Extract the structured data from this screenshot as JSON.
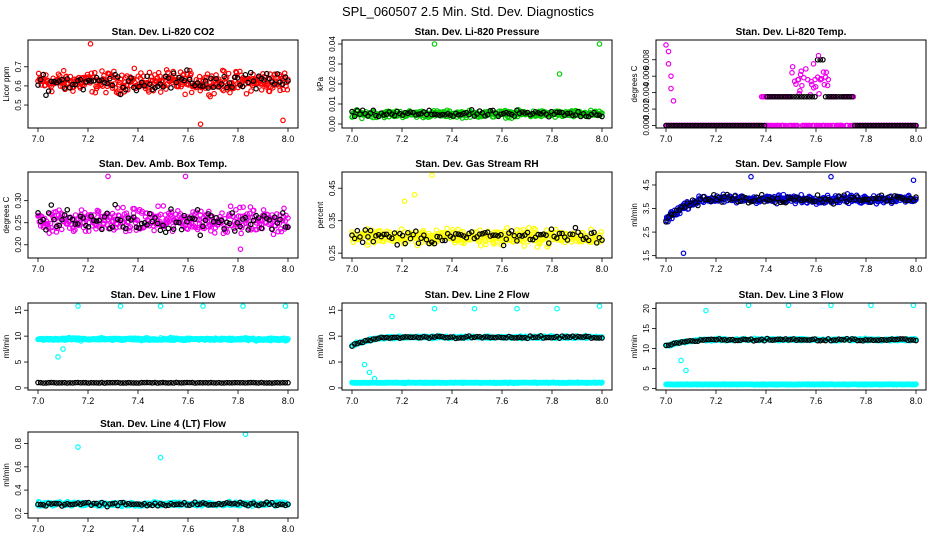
{
  "figure_title": "SPL_060507  2.5 Min. Std. Dev. Diagnostics",
  "chart_data": [
    {
      "id": "co2",
      "type": "scatter",
      "title": "Stan. Dev. Li-820 CO2",
      "ylabel": "Licor ppm",
      "xlabel": "",
      "xlim": [
        6.96,
        8.04
      ],
      "ylim": [
        0.38,
        0.84
      ],
      "xticks": [
        "7.0",
        "7.2",
        "7.4",
        "7.6",
        "7.8",
        "8.0"
      ],
      "yticks": [
        "0.5",
        "0.6",
        "0.7"
      ],
      "color": "#ff0000",
      "pattern": "noise",
      "base": 0.62,
      "spread": 0.08,
      "ramp": 0,
      "outliers": [
        {
          "x": 7.21,
          "y": 0.82
        },
        {
          "x": 7.65,
          "y": 0.4
        },
        {
          "x": 7.98,
          "y": 0.42
        }
      ]
    },
    {
      "id": "pressure",
      "type": "scatter",
      "title": "Stan. Dev. Li-820 Pressure",
      "ylabel": "kPa",
      "xlabel": "",
      "xlim": [
        6.96,
        8.04
      ],
      "ylim": [
        -0.002,
        0.042
      ],
      "xticks": [
        "7.0",
        "7.2",
        "7.4",
        "7.6",
        "7.8",
        "8.0"
      ],
      "yticks": [
        "0.00",
        "0.01",
        "0.02",
        "0.03",
        "0.04"
      ],
      "color": "#00cc00",
      "pattern": "noise",
      "base": 0.005,
      "spread": 0.0025,
      "ramp": 0,
      "outliers": [
        {
          "x": 7.33,
          "y": 0.04
        },
        {
          "x": 7.83,
          "y": 0.025
        },
        {
          "x": 7.99,
          "y": 0.04
        }
      ]
    },
    {
      "id": "temp",
      "type": "scatter",
      "title": "Stan. Dev. Li-820 Temp.",
      "ylabel": "degrees C",
      "xlabel": "",
      "xlim": [
        6.96,
        8.04
      ],
      "ylim": [
        -0.0003,
        0.0104
      ],
      "xticks": [
        "7.0",
        "7.2",
        "7.4",
        "7.6",
        "7.8",
        "8.0"
      ],
      "yticks": [
        "0.000",
        "0.002",
        "0.004",
        "0.006",
        "0.008"
      ],
      "color": "#ee00ee",
      "pattern": "temp",
      "base": 0,
      "spread": 0,
      "ramp": 0,
      "outliers": [
        {
          "x": 7.0,
          "y": 0.0098
        },
        {
          "x": 7.01,
          "y": 0.009
        },
        {
          "x": 7.01,
          "y": 0.0075
        },
        {
          "x": 7.02,
          "y": 0.006
        },
        {
          "x": 7.02,
          "y": 0.0045
        },
        {
          "x": 7.03,
          "y": 0.003
        },
        {
          "x": 7.59,
          "y": 0.0075
        },
        {
          "x": 7.61,
          "y": 0.0085
        },
        {
          "x": 7.63,
          "y": 0.0065
        }
      ]
    },
    {
      "id": "boxtemp",
      "type": "scatter",
      "title": "Stan. Dev. Amb. Box Temp.",
      "ylabel": "degrees C",
      "xlabel": "",
      "xlim": [
        6.96,
        8.04
      ],
      "ylim": [
        0.17,
        0.365
      ],
      "xticks": [
        "7.0",
        "7.2",
        "7.4",
        "7.6",
        "7.8",
        "8.0"
      ],
      "yticks": [
        "0.20",
        "0.25",
        "0.30"
      ],
      "color": "#ee00ee",
      "pattern": "noise",
      "base": 0.255,
      "spread": 0.04,
      "ramp": 0,
      "outliers": [
        {
          "x": 7.28,
          "y": 0.355
        },
        {
          "x": 7.59,
          "y": 0.355
        },
        {
          "x": 7.81,
          "y": 0.19
        }
      ]
    },
    {
      "id": "rh",
      "type": "scatter",
      "title": "Stan. Dev. Gas Stream RH",
      "ylabel": "percent",
      "xlabel": "",
      "xlim": [
        6.96,
        8.04
      ],
      "ylim": [
        0.235,
        0.5
      ],
      "xticks": [
        "7.0",
        "7.2",
        "7.4",
        "7.6",
        "7.8",
        "8.0"
      ],
      "yticks": [
        "0.25",
        "0.35",
        "0.45"
      ],
      "color": "#ffff00",
      "pattern": "noise",
      "base": 0.3,
      "spread": 0.035,
      "ramp": 0,
      "outliers": [
        {
          "x": 7.32,
          "y": 0.49
        },
        {
          "x": 7.25,
          "y": 0.43
        },
        {
          "x": 7.21,
          "y": 0.41
        }
      ]
    },
    {
      "id": "sample",
      "type": "scatter",
      "title": "Stan. Dev. Sample Flow",
      "ylabel": "ml/min",
      "xlabel": "",
      "xlim": [
        6.96,
        8.04
      ],
      "ylim": [
        1.4,
        5.05
      ],
      "xticks": [
        "7.0",
        "7.2",
        "7.4",
        "7.6",
        "7.8",
        "8.0"
      ],
      "yticks": [
        "1.5",
        "2.5",
        "3.5",
        "4.5"
      ],
      "color": "#0000dd",
      "pattern": "ramp",
      "base": 3.9,
      "spread": 0.25,
      "ramp": 0.9,
      "outliers": [
        {
          "x": 7.07,
          "y": 1.6
        },
        {
          "x": 7.34,
          "y": 4.85
        },
        {
          "x": 7.66,
          "y": 4.85
        },
        {
          "x": 7.99,
          "y": 4.7
        }
      ]
    },
    {
      "id": "line1",
      "type": "scatter",
      "title": "Stan. Dev. Line 1 Flow",
      "ylabel": "ml/min",
      "xlabel": "",
      "xlim": [
        6.96,
        8.04
      ],
      "ylim": [
        -0.4,
        16.4
      ],
      "xticks": [
        "7.0",
        "7.2",
        "7.4",
        "7.6",
        "7.8",
        "8.0"
      ],
      "yticks": [
        "0",
        "5",
        "10",
        "15"
      ],
      "color": "#00ffff",
      "pattern": "band",
      "base": 9.4,
      "spread": 0.35,
      "ramp": 0,
      "blackBase": 1.0,
      "outliers": [
        {
          "x": 7.16,
          "y": 15.8
        },
        {
          "x": 7.33,
          "y": 15.8
        },
        {
          "x": 7.49,
          "y": 15.8
        },
        {
          "x": 7.66,
          "y": 15.8
        },
        {
          "x": 7.82,
          "y": 15.8
        },
        {
          "x": 7.99,
          "y": 15.8
        },
        {
          "x": 7.08,
          "y": 6.0
        },
        {
          "x": 7.1,
          "y": 7.5
        }
      ]
    },
    {
      "id": "line2",
      "type": "scatter",
      "title": "Stan. Dev. Line 2 Flow",
      "ylabel": "ml/min",
      "xlabel": "",
      "xlim": [
        6.96,
        8.04
      ],
      "ylim": [
        -0.4,
        16.4
      ],
      "xticks": [
        "7.0",
        "7.2",
        "7.4",
        "7.6",
        "7.8",
        "8.0"
      ],
      "yticks": [
        "0",
        "5",
        "10",
        "15"
      ],
      "color": "#00ffff",
      "pattern": "band2",
      "base": 9.8,
      "spread": 0.35,
      "ramp": 1.6,
      "blackBase": 1.0,
      "outliers": [
        {
          "x": 7.16,
          "y": 13.8
        },
        {
          "x": 7.33,
          "y": 15.3
        },
        {
          "x": 7.49,
          "y": 15.3
        },
        {
          "x": 7.66,
          "y": 15.3
        },
        {
          "x": 7.82,
          "y": 15.3
        },
        {
          "x": 7.99,
          "y": 15.8
        },
        {
          "x": 7.05,
          "y": 4.5
        },
        {
          "x": 7.07,
          "y": 3.0
        },
        {
          "x": 7.09,
          "y": 1.8
        }
      ]
    },
    {
      "id": "line3",
      "type": "scatter",
      "title": "Stan. Dev. Line 3 Flow",
      "ylabel": "ml/min",
      "xlabel": "",
      "xlim": [
        6.96,
        8.04
      ],
      "ylim": [
        -0.4,
        21.4
      ],
      "xticks": [
        "7.0",
        "7.2",
        "7.4",
        "7.6",
        "7.8",
        "8.0"
      ],
      "yticks": [
        "0",
        "5",
        "10",
        "15",
        "20"
      ],
      "color": "#00ffff",
      "pattern": "band2",
      "base": 12.2,
      "spread": 0.4,
      "ramp": 1.5,
      "blackBase": 1.0,
      "outliers": [
        {
          "x": 7.16,
          "y": 19.5
        },
        {
          "x": 7.33,
          "y": 20.8
        },
        {
          "x": 7.49,
          "y": 20.8
        },
        {
          "x": 7.66,
          "y": 20.8
        },
        {
          "x": 7.82,
          "y": 20.8
        },
        {
          "x": 7.99,
          "y": 20.8
        },
        {
          "x": 7.06,
          "y": 7.0
        },
        {
          "x": 7.08,
          "y": 4.5
        }
      ]
    },
    {
      "id": "line4",
      "type": "scatter",
      "title": "Stan. Dev. Line 4 (LT) Flow",
      "ylabel": "ml/min",
      "xlabel": "",
      "xlim": [
        6.96,
        8.04
      ],
      "ylim": [
        0.16,
        0.9
      ],
      "xticks": [
        "7.0",
        "7.2",
        "7.4",
        "7.6",
        "7.8",
        "8.0"
      ],
      "yticks": [
        "0.2",
        "0.4",
        "0.6",
        "0.8"
      ],
      "color": "#00ffff",
      "pattern": "noise",
      "base": 0.28,
      "spread": 0.025,
      "ramp": 0,
      "outliers": [
        {
          "x": 7.16,
          "y": 0.77
        },
        {
          "x": 7.49,
          "y": 0.68
        },
        {
          "x": 7.83,
          "y": 0.88
        }
      ]
    }
  ]
}
